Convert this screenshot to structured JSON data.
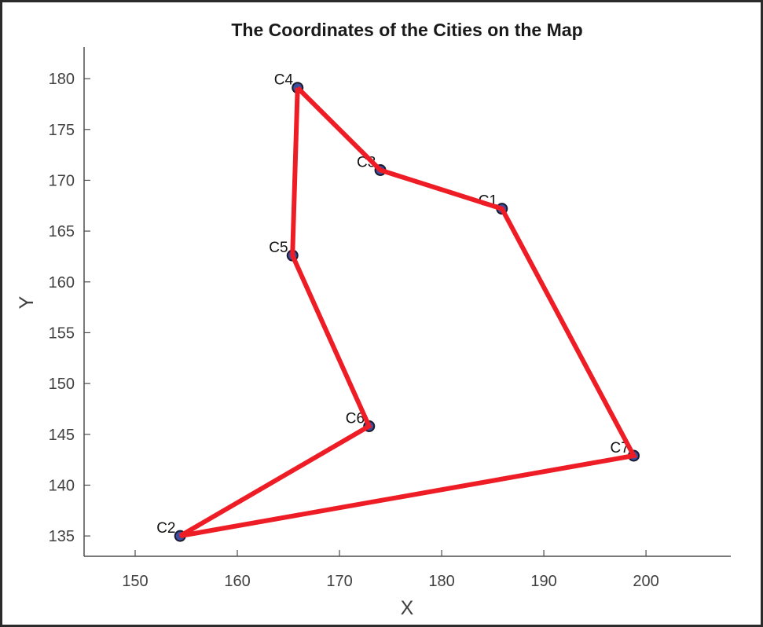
{
  "chart_data": {
    "type": "line",
    "title": "The Coordinates of the Cities on the Map",
    "xlabel": "X",
    "ylabel": "Y",
    "xlim": [
      145,
      208.3
    ],
    "ylim": [
      133.0,
      183.1
    ],
    "xticks": [
      150,
      160,
      170,
      180,
      190,
      200
    ],
    "yticks": [
      135,
      140,
      145,
      150,
      155,
      160,
      165,
      170,
      175,
      180
    ],
    "grid": false,
    "legend": null,
    "points": [
      {
        "label": "C1",
        "x": 185.9,
        "y": 167.2
      },
      {
        "label": "C2",
        "x": 154.4,
        "y": 135.0
      },
      {
        "label": "C3",
        "x": 174.0,
        "y": 171.0
      },
      {
        "label": "C4",
        "x": 165.9,
        "y": 179.1
      },
      {
        "label": "C5",
        "x": 165.4,
        "y": 162.6
      },
      {
        "label": "C6",
        "x": 172.9,
        "y": 145.8
      },
      {
        "label": "C7",
        "x": 198.8,
        "y": 142.9
      }
    ],
    "route": [
      "C4",
      "C3",
      "C1",
      "C7",
      "C2",
      "C6",
      "C5",
      "C4"
    ],
    "colors": {
      "route_line": "#ee1c25",
      "marker_fill": "#3a4fa0",
      "marker_edge": "#1a1a2e",
      "axis": "#4d4d4d"
    }
  }
}
